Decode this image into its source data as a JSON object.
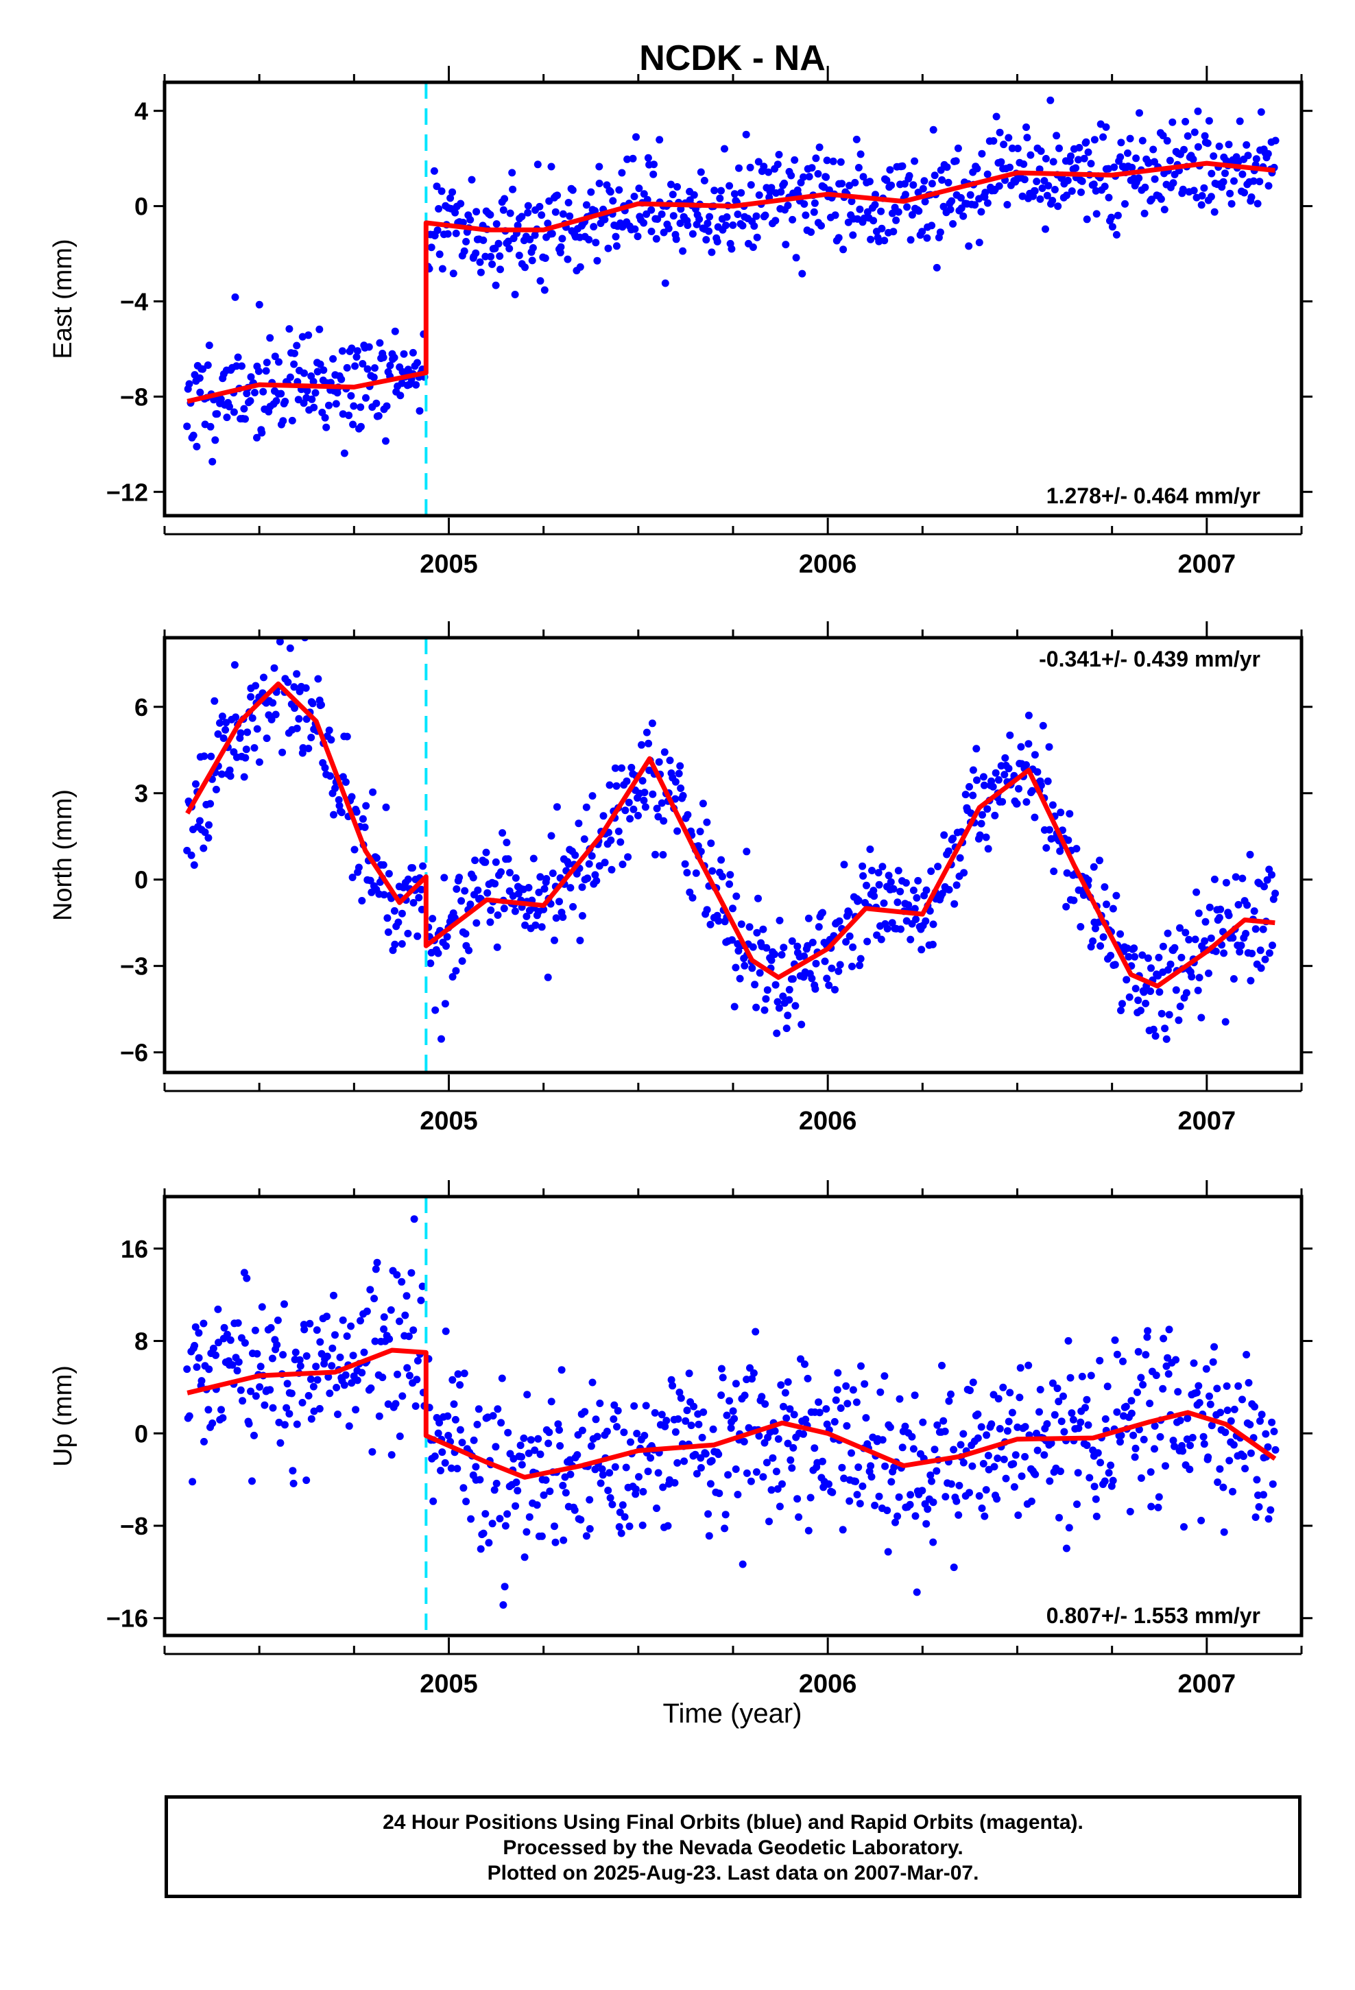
{
  "chart_data": {
    "type": "scatter",
    "title": "NCDK - NA",
    "xlabel": "Time (year)",
    "x_ticks": [
      "2005",
      "2006",
      "2007"
    ],
    "xlim": [
      2004.25,
      2007.25
    ],
    "offset_epoch": 2004.94,
    "panels": [
      {
        "ylabel": "East (mm)",
        "ylim": [
          -13.0,
          5.2
        ],
        "y_ticks": [
          4,
          0,
          -4,
          -8,
          -12
        ],
        "y_tick_labels": [
          "4",
          "0",
          "−4",
          "−8",
          "−12"
        ],
        "rate_label": "1.278+/- 0.464 mm/yr",
        "rate_position": "bottom-right",
        "fit_line": [
          [
            2004.31,
            -8.2
          ],
          [
            2004.5,
            -7.5
          ],
          [
            2004.75,
            -7.6
          ],
          [
            2004.94,
            -7.0
          ],
          [
            2004.94,
            -0.7
          ],
          [
            2005.1,
            -1.0
          ],
          [
            2005.25,
            -1.0
          ],
          [
            2005.5,
            0.1
          ],
          [
            2005.75,
            0.0
          ],
          [
            2006.0,
            0.5
          ],
          [
            2006.2,
            0.2
          ],
          [
            2006.5,
            1.4
          ],
          [
            2006.75,
            1.3
          ],
          [
            2007.0,
            1.8
          ],
          [
            2007.18,
            1.5
          ]
        ],
        "scatter_seed": 11,
        "scatter_sigma": 1.1,
        "scatter_count": 900
      },
      {
        "ylabel": "North (mm)",
        "ylim": [
          -6.7,
          8.4
        ],
        "y_ticks": [
          6,
          3,
          0,
          -3,
          -6
        ],
        "y_tick_labels": [
          "6",
          "3",
          "0",
          "−3",
          "−6"
        ],
        "rate_label": "-0.341+/- 0.439 mm/yr",
        "rate_position": "top-right",
        "fit_line": [
          [
            2004.31,
            2.3
          ],
          [
            2004.45,
            5.5
          ],
          [
            2004.55,
            6.8
          ],
          [
            2004.65,
            5.5
          ],
          [
            2004.78,
            1.0
          ],
          [
            2004.87,
            -0.8
          ],
          [
            2004.94,
            0.1
          ],
          [
            2004.94,
            -2.3
          ],
          [
            2005.1,
            -0.7
          ],
          [
            2005.25,
            -0.9
          ],
          [
            2005.4,
            1.5
          ],
          [
            2005.53,
            4.2
          ],
          [
            2005.65,
            1.0
          ],
          [
            2005.8,
            -2.8
          ],
          [
            2005.87,
            -3.4
          ],
          [
            2006.0,
            -2.4
          ],
          [
            2006.1,
            -1.0
          ],
          [
            2006.25,
            -1.2
          ],
          [
            2006.4,
            2.5
          ],
          [
            2006.53,
            3.8
          ],
          [
            2006.65,
            0.5
          ],
          [
            2006.8,
            -3.3
          ],
          [
            2006.87,
            -3.7
          ],
          [
            2007.0,
            -2.5
          ],
          [
            2007.1,
            -1.4
          ],
          [
            2007.18,
            -1.5
          ]
        ],
        "scatter_seed": 23,
        "scatter_sigma": 1.0,
        "scatter_count": 900
      },
      {
        "ylabel": "Up (mm)",
        "ylim": [
          -17.5,
          20.5
        ],
        "y_ticks": [
          16,
          8,
          0,
          -8,
          -16
        ],
        "y_tick_labels": [
          "16",
          "8",
          "0",
          "−8",
          "−16"
        ],
        "rate_label": "0.807+/- 1.553 mm/yr",
        "rate_position": "bottom-right",
        "fit_line": [
          [
            2004.31,
            3.5
          ],
          [
            2004.5,
            5.0
          ],
          [
            2004.7,
            5.3
          ],
          [
            2004.85,
            7.2
          ],
          [
            2004.94,
            7.0
          ],
          [
            2004.94,
            -0.2
          ],
          [
            2005.1,
            -2.5
          ],
          [
            2005.2,
            -3.8
          ],
          [
            2005.35,
            -2.8
          ],
          [
            2005.5,
            -1.5
          ],
          [
            2005.7,
            -1.0
          ],
          [
            2005.88,
            0.9
          ],
          [
            2006.0,
            0.0
          ],
          [
            2006.2,
            -2.8
          ],
          [
            2006.35,
            -2.0
          ],
          [
            2006.5,
            -0.5
          ],
          [
            2006.7,
            -0.4
          ],
          [
            2006.85,
            1.0
          ],
          [
            2006.95,
            1.8
          ],
          [
            2007.05,
            0.8
          ],
          [
            2007.18,
            -2.2
          ]
        ],
        "scatter_seed": 37,
        "scatter_sigma": 3.8,
        "scatter_count": 900
      }
    ],
    "colors": {
      "points": "#0000ff",
      "fit": "#ff0000",
      "offset_line": "#00e5ff",
      "frame": "#000000"
    }
  },
  "footer": {
    "line1": "24 Hour Positions Using Final Orbits (blue) and Rapid Orbits (magenta).",
    "line2": "Processed by the Nevada Geodetic Laboratory.",
    "line3": "Plotted on 2025-Aug-23. Last data on 2007-Mar-07."
  }
}
